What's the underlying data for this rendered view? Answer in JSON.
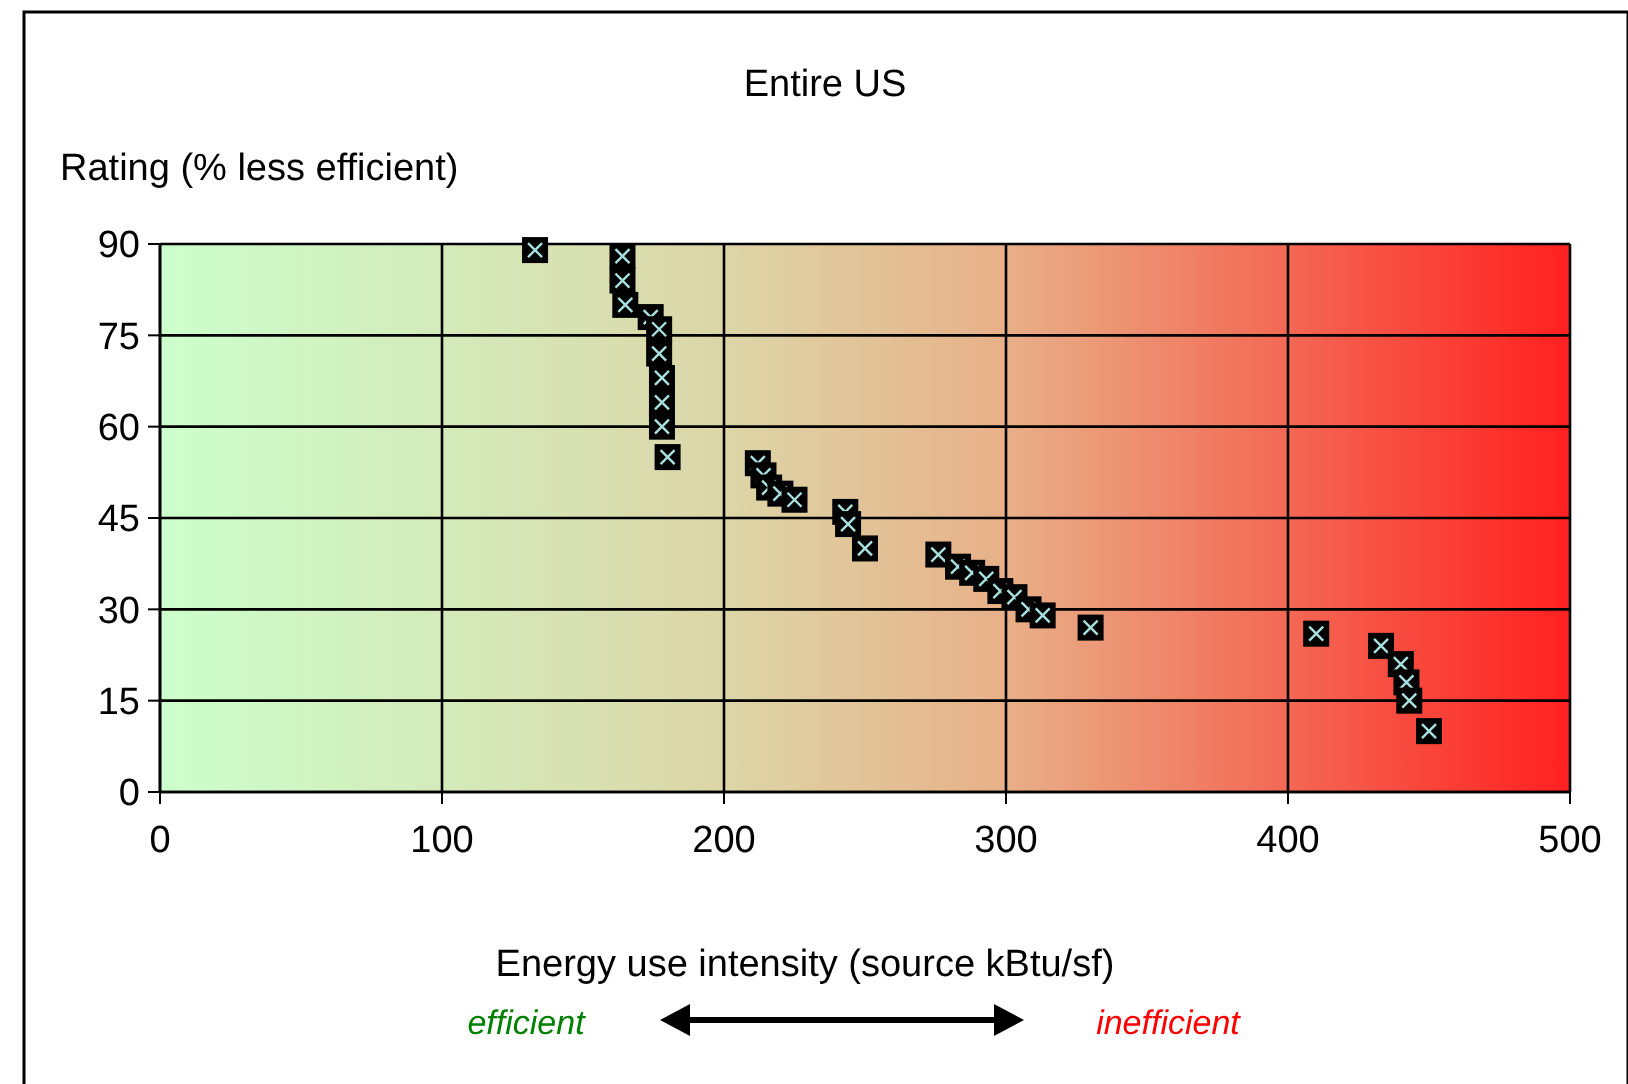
{
  "chart_data": {
    "type": "scatter",
    "title": "Entire US",
    "xlabel": "Energy use intensity (source kBtu/sf)",
    "ylabel": "Rating (% less efficient)",
    "annotations": [
      "efficient",
      "inefficient"
    ],
    "x": [
      133,
      164,
      164,
      165,
      174,
      177,
      177,
      178,
      178,
      178,
      180,
      212,
      214,
      216,
      220,
      225,
      243,
      244,
      250,
      276,
      283,
      288,
      293,
      298,
      303,
      308,
      313,
      330,
      410,
      433,
      440,
      442,
      443,
      450
    ],
    "values": [
      89,
      88,
      84,
      80,
      78,
      76,
      72,
      68,
      64,
      60,
      55,
      54,
      52,
      50,
      49,
      48,
      46,
      44,
      40,
      39,
      37,
      36,
      35,
      33,
      32,
      30,
      29,
      27,
      26,
      24,
      21,
      18,
      15,
      10
    ],
    "color": "#000000",
    "marker": "square",
    "xlim": [
      0,
      500
    ],
    "ylim": [
      0,
      90
    ],
    "xticks": [
      0,
      100,
      200,
      300,
      400,
      500
    ],
    "yticks": [
      0,
      15,
      30,
      45,
      60,
      75,
      90
    ],
    "grid": true
  }
}
